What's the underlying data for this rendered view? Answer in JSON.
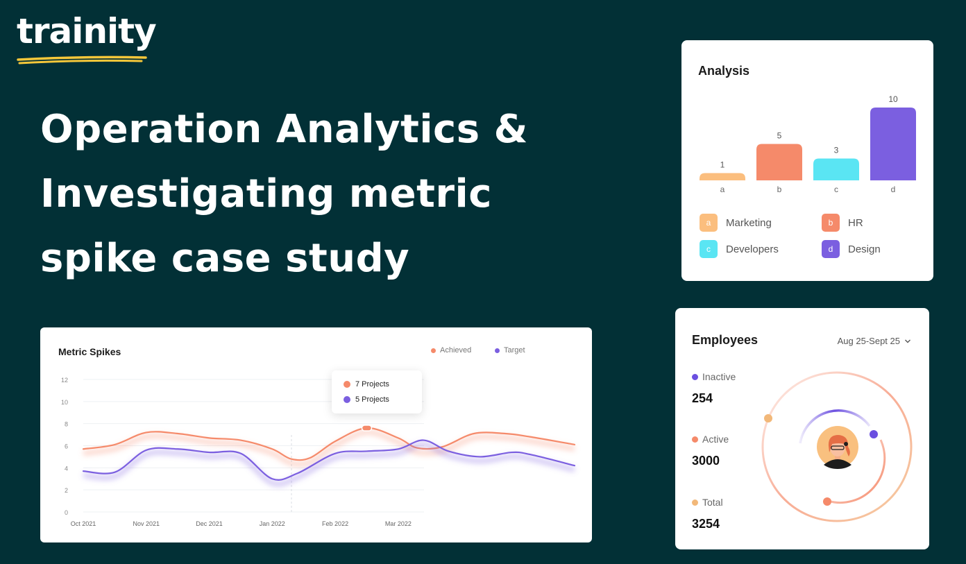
{
  "brand": {
    "name": "trainity"
  },
  "headline": {
    "lines": [
      "Operation Analytics &",
      "Investigating metric",
      "spike case study"
    ]
  },
  "analysis": {
    "title": "Analysis",
    "chart_data": {
      "type": "bar",
      "categories": [
        "a",
        "b",
        "c",
        "d"
      ],
      "values": [
        1,
        5,
        3,
        10
      ],
      "colors": [
        "#FBBE7E",
        "#F58A6A",
        "#5AE5F3",
        "#7B5FE0"
      ],
      "legend": [
        {
          "key": "a",
          "label": "Marketing",
          "color": "#FBBE7E"
        },
        {
          "key": "b",
          "label": "HR",
          "color": "#F58A6A"
        },
        {
          "key": "c",
          "label": "Developers",
          "color": "#5AE5F3"
        },
        {
          "key": "d",
          "label": "Design",
          "color": "#7B5FE0"
        }
      ]
    }
  },
  "metric_spikes": {
    "title": "Metric Spikes",
    "legend": {
      "achieved": "Achieved",
      "target": "Target"
    },
    "tooltip": {
      "achieved": "7 Projects",
      "target": "5 Projects"
    },
    "chart_data": {
      "type": "line",
      "x": [
        "Oct 2021",
        "Nov 2021",
        "Dec 2021",
        "Jan 2022",
        "Feb 2022",
        "Mar 2022"
      ],
      "ylim": [
        0,
        12
      ],
      "yticks": [
        0,
        2,
        4,
        6,
        8,
        10,
        12
      ],
      "xlim": [
        0,
        7.8
      ],
      "series": [
        {
          "name": "Achieved",
          "color": "#F58A6A",
          "points": [
            [
              0,
              5.7
            ],
            [
              0.5,
              6.1
            ],
            [
              1,
              7.2
            ],
            [
              1.5,
              7.1
            ],
            [
              2,
              6.7
            ],
            [
              2.5,
              6.5
            ],
            [
              3,
              5.7
            ],
            [
              3.3,
              4.8
            ],
            [
              3.6,
              4.9
            ],
            [
              4,
              6.4
            ],
            [
              4.5,
              7.6
            ],
            [
              5,
              6.7
            ],
            [
              5.3,
              5.8
            ],
            [
              5.7,
              5.9
            ],
            [
              6.2,
              7.1
            ],
            [
              6.7,
              7.1
            ],
            [
              7.1,
              6.8
            ],
            [
              7.8,
              6.1
            ]
          ]
        },
        {
          "name": "Target",
          "color": "#7B5FE0",
          "points": [
            [
              0,
              3.7
            ],
            [
              0.5,
              3.6
            ],
            [
              1,
              5.6
            ],
            [
              1.5,
              5.7
            ],
            [
              2,
              5.4
            ],
            [
              2.5,
              5.3
            ],
            [
              3,
              3.0
            ],
            [
              3.4,
              3.5
            ],
            [
              4,
              5.3
            ],
            [
              4.5,
              5.5
            ],
            [
              5,
              5.7
            ],
            [
              5.4,
              6.5
            ],
            [
              5.8,
              5.5
            ],
            [
              6.3,
              5.0
            ],
            [
              6.8,
              5.4
            ],
            [
              7.1,
              5.2
            ],
            [
              7.8,
              4.2
            ]
          ]
        }
      ]
    }
  },
  "employees": {
    "title": "Employees",
    "date_range": "Aug 25-Sept 25",
    "stats": [
      {
        "label": "Inactive",
        "value": "254",
        "color": "#6B4FE0"
      },
      {
        "label": "Active",
        "value": "3000",
        "color": "#F58A6A"
      },
      {
        "label": "Total",
        "value": "3254",
        "color": "#F2B879"
      }
    ]
  }
}
